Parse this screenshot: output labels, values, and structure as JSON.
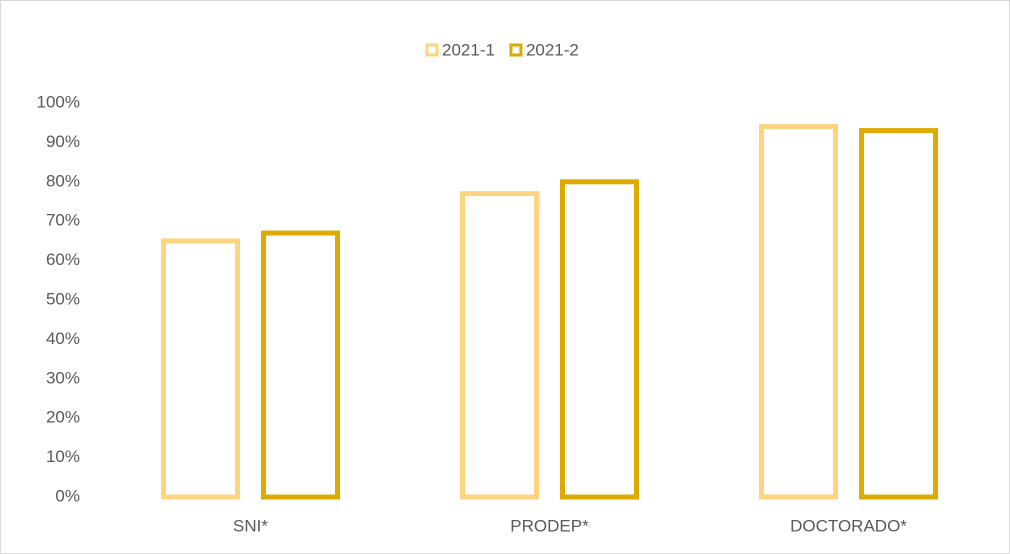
{
  "chart_data": {
    "type": "bar",
    "categories": [
      "SNI*",
      "PRODEP*",
      "DOCTORADO*"
    ],
    "series": [
      {
        "name": "2021-1",
        "color": "#ffd37f",
        "values": [
          65,
          77,
          94
        ]
      },
      {
        "name": "2021-2",
        "color": "#dcaa00",
        "values": [
          67,
          80,
          93
        ]
      }
    ],
    "ylim": [
      0,
      100
    ],
    "yticks": [
      {
        "value": 0,
        "label": "0%"
      },
      {
        "value": 10,
        "label": "10%"
      },
      {
        "value": 20,
        "label": "20%"
      },
      {
        "value": 30,
        "label": "30%"
      },
      {
        "value": 40,
        "label": "40%"
      },
      {
        "value": 50,
        "label": "50%"
      },
      {
        "value": 60,
        "label": "60%"
      },
      {
        "value": 70,
        "label": "70%"
      },
      {
        "value": 80,
        "label": "80%"
      },
      {
        "value": 90,
        "label": "90%"
      },
      {
        "value": 100,
        "label": "100%"
      }
    ],
    "grid": false,
    "legend": "top"
  }
}
